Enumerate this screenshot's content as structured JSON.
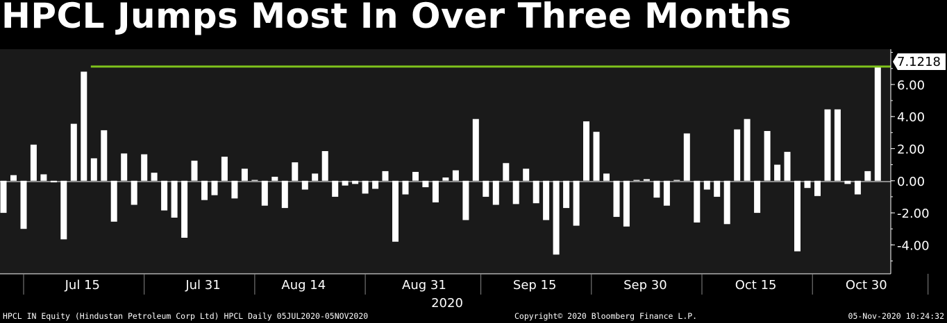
{
  "title": "HPCL Jumps Most In Over Three Months",
  "footer": {
    "left": "HPCL IN Equity (Hindustan Petroleum Corp Ltd) HPCL  Daily 05JUL2020-05NOV2020",
    "center": "Copyright© 2020 Bloomberg Finance L.P.",
    "right": "05-Nov-2020 10:24:32"
  },
  "colors": {
    "background": "#000000",
    "plot_background": "#1a1a1a",
    "bars": "#ffffff",
    "reference_line": "#7fc31c"
  },
  "chart_data": {
    "type": "bar",
    "x_axis_label": "2020",
    "x_tick_labels": [
      {
        "label": "Jul 15",
        "index": 8
      },
      {
        "label": "Jul 31",
        "index": 20
      },
      {
        "label": "Aug 14",
        "index": 30
      },
      {
        "label": "Aug 31",
        "index": 42
      },
      {
        "label": "Sep 15",
        "index": 53
      },
      {
        "label": "Sep 30",
        "index": 64
      },
      {
        "label": "Oct 15",
        "index": 75
      },
      {
        "label": "Oct 30",
        "index": 86
      }
    ],
    "y_ticks": [
      "6.00",
      "4.00",
      "2.00",
      "0.00",
      "-2.00",
      "-4.00"
    ],
    "ylim": [
      -5.8,
      8.2
    ],
    "reference_line": {
      "value": 7.1218,
      "label": "7.1218",
      "start_index": 9
    },
    "values": [
      -2.0,
      0.35,
      -3.0,
      2.25,
      0.4,
      -0.1,
      -3.65,
      3.55,
      6.8,
      1.4,
      3.15,
      -2.55,
      1.7,
      -1.5,
      1.65,
      0.5,
      -1.85,
      -2.3,
      -3.55,
      1.25,
      -1.2,
      -0.9,
      1.5,
      -1.1,
      0.75,
      0.05,
      -1.55,
      0.25,
      -1.7,
      1.15,
      -0.55,
      0.45,
      1.85,
      -1.0,
      -0.3,
      -0.2,
      -0.8,
      -0.5,
      0.6,
      -3.8,
      -0.85,
      0.55,
      -0.4,
      -1.35,
      0.2,
      0.65,
      -2.45,
      3.85,
      -1.0,
      -1.5,
      1.1,
      -1.45,
      0.75,
      -1.4,
      -2.45,
      -4.6,
      -1.7,
      -2.8,
      3.7,
      3.05,
      0.45,
      -2.25,
      -2.85,
      0.05,
      0.1,
      -1.05,
      -1.55,
      0.05,
      2.95,
      -2.6,
      -0.55,
      -1.0,
      -2.7,
      3.2,
      3.85,
      -2.0,
      3.1,
      1.0,
      1.8,
      -4.4,
      -0.45,
      -0.95,
      4.45,
      4.45,
      -0.2,
      -0.85,
      0.6,
      7.1218
    ]
  }
}
